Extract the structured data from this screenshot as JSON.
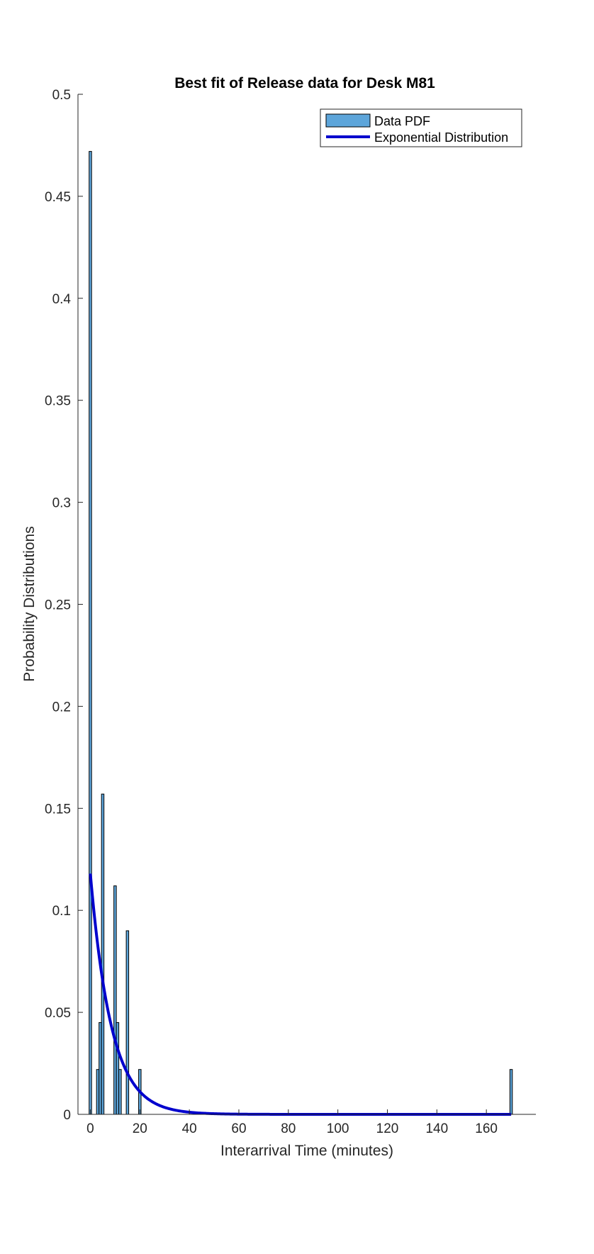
{
  "chart_data": {
    "type": "bar",
    "title": "Best fit of Release data for Desk M81",
    "xlabel": "Interarrival Time (minutes)",
    "ylabel": "Probability Distributions",
    "xlim": [
      -5,
      180
    ],
    "ylim": [
      0,
      0.5
    ],
    "xticks": [
      0,
      20,
      40,
      60,
      80,
      100,
      120,
      140,
      160
    ],
    "yticks": [
      0,
      0.05,
      0.1,
      0.15,
      0.2,
      0.25,
      0.3,
      0.35,
      0.4,
      0.45,
      0.5
    ],
    "xtick_labels": [
      "0",
      "20",
      "40",
      "60",
      "80",
      "100",
      "120",
      "140",
      "160"
    ],
    "ytick_labels": [
      "0",
      "0.05",
      "0.1",
      "0.15",
      "0.2",
      "0.25",
      "0.3",
      "0.35",
      "0.4",
      "0.45",
      "0.5"
    ],
    "grid": false,
    "legend_position": "top-right",
    "legend": [
      "Data PDF",
      "Exponential Distribution"
    ],
    "bar_width": 1,
    "series": [
      {
        "name": "Data PDF",
        "type": "bar",
        "color": "#5DA5DA",
        "edge_color": "#000000",
        "x": [
          0,
          3,
          4,
          5,
          10,
          11,
          12,
          15,
          20,
          170
        ],
        "values": [
          0.472,
          0.022,
          0.045,
          0.157,
          0.112,
          0.045,
          0.022,
          0.09,
          0.022,
          0.022
        ]
      },
      {
        "name": "Exponential Distribution",
        "type": "line",
        "color": "#0000CD",
        "lambda": 0.118,
        "x_range": [
          0,
          170
        ]
      }
    ]
  }
}
